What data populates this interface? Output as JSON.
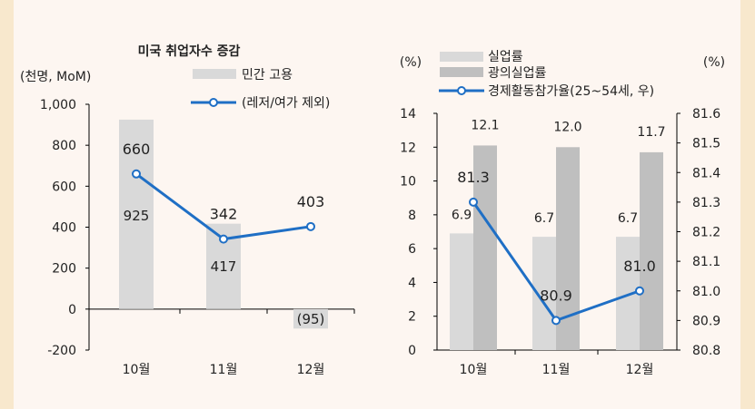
{
  "chart_data": [
    {
      "type": "bar+line",
      "title": "미국 취업자수 증감",
      "ylabel": "(천명, MoM)",
      "categories": [
        "10월",
        "11월",
        "12월"
      ],
      "ylim": [
        -200,
        1000
      ],
      "yticks": [
        "1,000",
        "800",
        "600",
        "400",
        "200",
        "0",
        "-200"
      ],
      "ytick_values": [
        1000,
        800,
        600,
        400,
        200,
        0,
        -200
      ],
      "series": [
        {
          "name": "민간 고용",
          "type": "bar",
          "values": [
            925,
            417,
            -95
          ],
          "labels": [
            "925",
            "417",
            "(95)"
          ],
          "color": "#d9d9d9"
        },
        {
          "name": "(레저/여가 제외)",
          "type": "line",
          "values": [
            660,
            342,
            403
          ],
          "labels": [
            "660",
            "342",
            "403"
          ],
          "color": "#1f6fc5"
        }
      ]
    },
    {
      "type": "bar+line",
      "ylabel": "(%)",
      "y2label": "(%)",
      "categories": [
        "10월",
        "11월",
        "12월"
      ],
      "ylim": [
        0,
        14
      ],
      "y2lim": [
        80.8,
        81.6
      ],
      "yticks": [
        "0",
        "2",
        "4",
        "6",
        "8",
        "10",
        "12",
        "14"
      ],
      "ytick_values": [
        0,
        2,
        4,
        6,
        8,
        10,
        12,
        14
      ],
      "y2ticks": [
        "80.8",
        "80.9",
        "81.0",
        "81.1",
        "81.2",
        "81.3",
        "81.4",
        "81.5",
        "81.6"
      ],
      "y2tick_values": [
        80.8,
        80.9,
        81.0,
        81.1,
        81.2,
        81.3,
        81.4,
        81.5,
        81.6
      ],
      "series": [
        {
          "name": "실업률",
          "type": "bar",
          "values": [
            6.9,
            6.7,
            6.7
          ],
          "labels": [
            "6.9",
            "6.7",
            "6.7"
          ],
          "color": "#d9d9d9"
        },
        {
          "name": "광의실업률",
          "type": "bar",
          "values": [
            12.1,
            12.0,
            11.7
          ],
          "labels": [
            "12.1",
            "12.0",
            "11.7"
          ],
          "color": "#bfbfbf"
        },
        {
          "name": "경제활동참가율(25~54세, 우)",
          "type": "line",
          "axis": "right",
          "values": [
            81.3,
            80.9,
            81.0
          ],
          "labels": [
            "81.3",
            "80.9",
            "81.0"
          ],
          "color": "#1f6fc5"
        }
      ]
    }
  ]
}
